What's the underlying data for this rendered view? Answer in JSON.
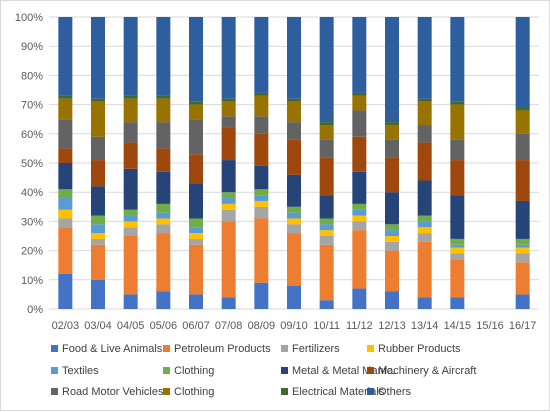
{
  "chart_data": {
    "type": "bar",
    "stacked": true,
    "percent": true,
    "title": "",
    "xlabel": "",
    "ylabel": "",
    "ylim": [
      0,
      100
    ],
    "yticks": [
      "0%",
      "10%",
      "20%",
      "30%",
      "40%",
      "50%",
      "60%",
      "70%",
      "80%",
      "90%",
      "100%"
    ],
    "grid": true,
    "legend_position": "bottom",
    "categories": [
      "02/03",
      "03/04",
      "04/05",
      "05/06",
      "06/07",
      "07/08",
      "08/09",
      "09/10",
      "10/11",
      "11/12",
      "12/13",
      "13/14",
      "14/15",
      "15/16",
      "16/17"
    ],
    "series": [
      {
        "name": "Food & Live Animals",
        "color": "#4472c4",
        "values": [
          12,
          10,
          5,
          6,
          5,
          4,
          9,
          8,
          3,
          7,
          6,
          4,
          4,
          0,
          5
        ]
      },
      {
        "name": "Petroleum Products",
        "color": "#ed7d31",
        "values": [
          16,
          12,
          20,
          20,
          17,
          26,
          22,
          18,
          19,
          20,
          14,
          19,
          13,
          0,
          11
        ]
      },
      {
        "name": "Fertilizers",
        "color": "#a5a5a5",
        "values": [
          3,
          2,
          3,
          3,
          2,
          4,
          4,
          3,
          3,
          3,
          3,
          3,
          2,
          0,
          3
        ]
      },
      {
        "name": "Rubber Products",
        "color": "#ffc000",
        "values": [
          3,
          2,
          2,
          2,
          2,
          2,
          2,
          2,
          2,
          2,
          2,
          2,
          2,
          0,
          2
        ]
      },
      {
        "name": "Textiles",
        "color": "#5b9bd5",
        "values": [
          4,
          3,
          2,
          2,
          2,
          2,
          2,
          2,
          2,
          2,
          2,
          2,
          1,
          0,
          1
        ]
      },
      {
        "name": "Clothing",
        "color": "#70ad47",
        "values": [
          3,
          3,
          2,
          3,
          3,
          2,
          2,
          2,
          2,
          2,
          2,
          2,
          2,
          0,
          2
        ]
      },
      {
        "name": "Metal & Metal Manfc.",
        "color": "#264478",
        "values": [
          9,
          10,
          14,
          11,
          12,
          11,
          8,
          11,
          8,
          11,
          11,
          12,
          15,
          0,
          13
        ]
      },
      {
        "name": "Machinery & Aircraft",
        "color": "#9e480e",
        "values": [
          5,
          9,
          9,
          8,
          10,
          11,
          11,
          12,
          13,
          12,
          12,
          13,
          12,
          0,
          14
        ]
      },
      {
        "name": "Road Motor Vehicles",
        "color": "#636363",
        "values": [
          10,
          8,
          7,
          9,
          12,
          4,
          6,
          6,
          6,
          9,
          6,
          6,
          7,
          0,
          9
        ]
      },
      {
        "name": "Clothing",
        "color": "#997300",
        "values": [
          7,
          12,
          8,
          8,
          5,
          5,
          7,
          7,
          5,
          5,
          5,
          8,
          12,
          0,
          8
        ]
      },
      {
        "name": "Electrical Materials",
        "color": "#43682b",
        "values": [
          1,
          1,
          1,
          1,
          1,
          1,
          1,
          1,
          1,
          1,
          1,
          1,
          1,
          0,
          1
        ]
      },
      {
        "name": "Others",
        "color": "#2e5e9e",
        "values": [
          27,
          28,
          27,
          27,
          29,
          28,
          26,
          28,
          36,
          26,
          36,
          28,
          29,
          0,
          31
        ]
      }
    ],
    "legend": [
      [
        "Food & Live Animals",
        "Petroleum Products",
        "Fertilizers",
        "Rubber Products"
      ],
      [
        "Textiles",
        "Clothing",
        "Metal & Metal Manfc.",
        "Machinery & Aircraft"
      ],
      [
        "Road Motor Vehicles",
        "Clothing",
        "Electrical Materials",
        "Others"
      ]
    ]
  }
}
